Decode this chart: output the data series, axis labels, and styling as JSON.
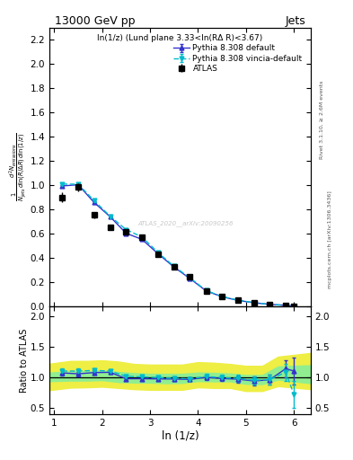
{
  "title": "13000 GeV pp",
  "title_right": "Jets",
  "inner_title": "ln(1/z) (Lund plane 3.33<ln(RΔ R)<3.67)",
  "ylabel_main_line1": "d² Nₑₘₖₛₛᵢₒₙₛ",
  "ylabel_ratio": "Ratio to ATLAS",
  "xlabel": "ln (1/z)",
  "right_label_top": "Rivet 3.1.10, ≥ 2.6M events",
  "right_label_bottom": "mcplots.cern.ch [arXiv:1306.3436]",
  "xlim": [
    0.9,
    6.35
  ],
  "ylim_main": [
    0.0,
    2.3
  ],
  "ylim_ratio": [
    0.4,
    2.15
  ],
  "atlas_x": [
    1.17,
    1.5,
    1.83,
    2.17,
    2.5,
    2.83,
    3.17,
    3.5,
    3.83,
    4.17,
    4.5,
    4.83,
    5.17,
    5.5,
    5.83,
    6.0
  ],
  "atlas_y": [
    0.9,
    0.985,
    0.755,
    0.655,
    0.615,
    0.572,
    0.435,
    0.33,
    0.245,
    0.128,
    0.082,
    0.053,
    0.034,
    0.019,
    0.01,
    0.005
  ],
  "atlas_yerr": [
    0.04,
    0.035,
    0.028,
    0.024,
    0.023,
    0.019,
    0.016,
    0.014,
    0.011,
    0.008,
    0.006,
    0.005,
    0.004,
    0.003,
    0.002,
    0.002
  ],
  "pythia_default_x": [
    1.17,
    1.5,
    1.83,
    2.17,
    2.5,
    2.83,
    3.17,
    3.5,
    3.83,
    4.17,
    4.5,
    4.83,
    5.17,
    5.5,
    5.83,
    6.0
  ],
  "pythia_default_y": [
    0.995,
    1.005,
    0.86,
    0.74,
    0.605,
    0.555,
    0.435,
    0.326,
    0.232,
    0.13,
    0.082,
    0.052,
    0.032,
    0.019,
    0.011,
    0.006
  ],
  "pythia_default_yerr": [
    0.008,
    0.008,
    0.007,
    0.006,
    0.005,
    0.005,
    0.004,
    0.003,
    0.003,
    0.002,
    0.002,
    0.001,
    0.001,
    0.001,
    0.001,
    0.001
  ],
  "pythia_vincia_x": [
    1.17,
    1.5,
    1.83,
    2.17,
    2.5,
    2.83,
    3.17,
    3.5,
    3.83,
    4.17,
    4.5,
    4.83,
    5.17,
    5.5,
    5.83,
    6.0
  ],
  "pythia_vincia_y": [
    1.01,
    1.01,
    0.875,
    0.745,
    0.635,
    0.575,
    0.445,
    0.332,
    0.238,
    0.133,
    0.084,
    0.054,
    0.033,
    0.019,
    0.011,
    0.006
  ],
  "pythia_vincia_yerr": [
    0.008,
    0.008,
    0.007,
    0.006,
    0.005,
    0.005,
    0.004,
    0.003,
    0.003,
    0.002,
    0.002,
    0.001,
    0.001,
    0.001,
    0.001,
    0.001
  ],
  "ratio_default_y": [
    1.07,
    1.055,
    1.075,
    1.08,
    0.975,
    0.975,
    0.972,
    0.97,
    0.963,
    0.998,
    0.978,
    0.968,
    0.938,
    0.96,
    1.14,
    1.1
  ],
  "ratio_default_yerr": [
    0.045,
    0.037,
    0.032,
    0.03,
    0.027,
    0.025,
    0.024,
    0.026,
    0.03,
    0.038,
    0.044,
    0.055,
    0.068,
    0.085,
    0.14,
    0.22
  ],
  "ratio_vincia_y": [
    1.1,
    1.1,
    1.11,
    1.1,
    1.015,
    1.005,
    0.993,
    0.983,
    0.973,
    1.012,
    0.992,
    0.98,
    0.95,
    0.963,
    1.08,
    0.72
  ],
  "ratio_vincia_yerr": [
    0.045,
    0.037,
    0.032,
    0.03,
    0.027,
    0.025,
    0.024,
    0.026,
    0.03,
    0.038,
    0.044,
    0.055,
    0.068,
    0.085,
    0.14,
    0.22
  ],
  "green_band_x": [
    0.9,
    1.34,
    1.67,
    2.0,
    2.34,
    2.67,
    3.0,
    3.34,
    3.67,
    4.0,
    4.34,
    4.67,
    5.0,
    5.34,
    5.67,
    6.35
  ],
  "green_band_low": [
    0.935,
    0.945,
    0.945,
    0.952,
    0.922,
    0.912,
    0.912,
    0.902,
    0.907,
    0.937,
    0.932,
    0.932,
    0.892,
    0.887,
    0.962,
    0.902
  ],
  "green_band_high": [
    1.075,
    1.095,
    1.095,
    1.105,
    1.085,
    1.065,
    1.055,
    1.055,
    1.055,
    1.075,
    1.07,
    1.06,
    1.035,
    1.035,
    1.175,
    1.195
  ],
  "yellow_band_low": [
    0.79,
    0.83,
    0.835,
    0.845,
    0.825,
    0.805,
    0.795,
    0.795,
    0.795,
    0.835,
    0.825,
    0.825,
    0.775,
    0.775,
    0.855,
    0.805
  ],
  "yellow_band_high": [
    1.22,
    1.265,
    1.265,
    1.275,
    1.255,
    1.215,
    1.205,
    1.205,
    1.205,
    1.245,
    1.235,
    1.215,
    1.185,
    1.185,
    1.335,
    1.395
  ],
  "color_atlas": "#000000",
  "color_pythia_default": "#3333cc",
  "color_pythia_vincia": "#00bbcc",
  "color_green_band": "#90ee90",
  "color_yellow_band": "#eeee44",
  "watermark": "ATLAS_2020__arXiv:20090256",
  "yticks_main": [
    0.0,
    0.2,
    0.4,
    0.6,
    0.8,
    1.0,
    1.2,
    1.4,
    1.6,
    1.8,
    2.0,
    2.2
  ],
  "yticks_ratio": [
    0.5,
    1.0,
    1.5,
    2.0
  ],
  "xticks": [
    1,
    2,
    3,
    4,
    5,
    6
  ]
}
